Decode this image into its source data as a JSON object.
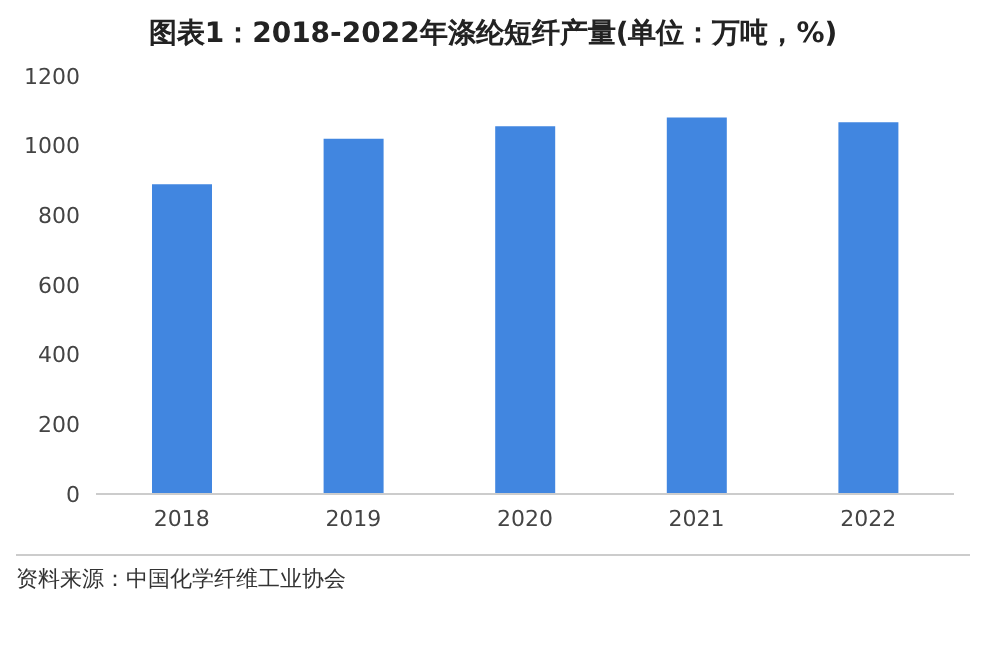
{
  "chart_data": {
    "type": "bar",
    "title": "图表1：2018-2022年涤纶短纤产量(单位：万吨，%)",
    "categories": [
      "2018",
      "2019",
      "2020",
      "2021",
      "2022"
    ],
    "values": [
      889,
      1020,
      1056,
      1081,
      1067
    ],
    "color": "#4186e0",
    "ylim": [
      0,
      1200
    ],
    "yticks": [
      0,
      200,
      400,
      600,
      800,
      1000,
      1200
    ],
    "grid": false,
    "annotations": [
      "资料来源：中国化学纤维工业协会"
    ]
  }
}
